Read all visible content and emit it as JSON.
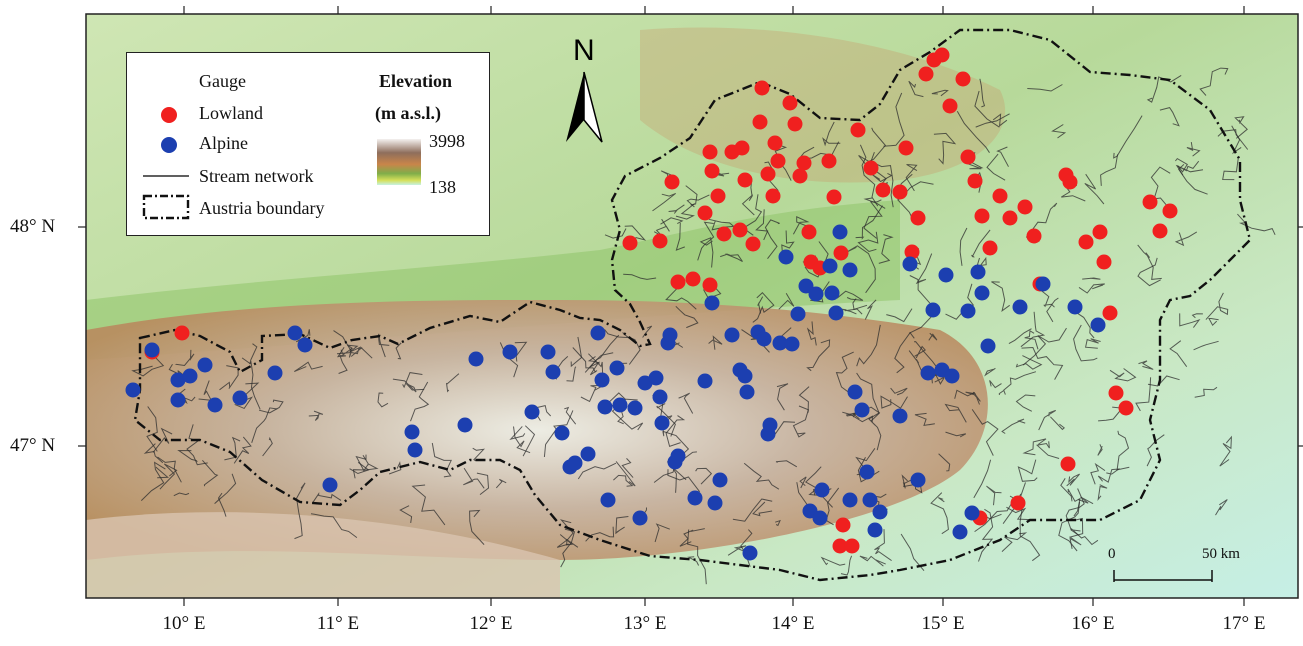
{
  "axes": {
    "x_ticks": [
      "10° E",
      "11° E",
      "12° E",
      "13° E",
      "14° E",
      "15° E",
      "16° E",
      "17° E"
    ],
    "y_ticks": [
      "48° N",
      "47° N"
    ]
  },
  "legend": {
    "gauge_title": "Gauge",
    "lowland_label": "Lowland",
    "alpine_label": "Alpine",
    "stream_label": "Stream network",
    "boundary_label": "Austria boundary",
    "elevation_title": "Elevation",
    "elevation_unit": "(m a.s.l.)",
    "elevation_max": "3998",
    "elevation_min": "138"
  },
  "north_arrow": {
    "label": "N"
  },
  "scale_bar": {
    "start_label": "0",
    "end_label": "50 km"
  },
  "colors": {
    "lowland": "#f0201f",
    "alpine": "#1c3fb0",
    "stream": "#2c2c2c",
    "boundary": "#111111",
    "frame": "#222222"
  }
}
